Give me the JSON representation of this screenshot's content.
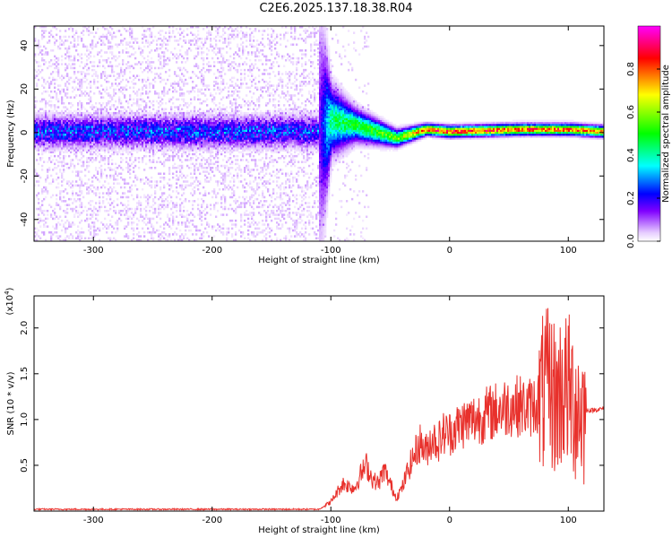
{
  "title": "C2E6.2025.137.18.38.R04",
  "chart_data": [
    {
      "type": "heatmap",
      "title": "C2E6.2025.137.18.38.R04",
      "xlabel": "Height of straight line (km)",
      "ylabel": "Frequency (Hz)",
      "xlim": [
        -350,
        130
      ],
      "ylim": [
        -50,
        49
      ],
      "xticks": [
        -300,
        -200,
        -100,
        0,
        100
      ],
      "xtick_labels": [
        "-300",
        "-200",
        "-100",
        "0",
        "100"
      ],
      "yticks": [
        -40,
        -20,
        0,
        20,
        40
      ],
      "ytick_labels": [
        "-40",
        "-20",
        "0",
        "20",
        "40"
      ],
      "colorbar": {
        "label": "Normalized spectral amplitude",
        "range": [
          0.0,
          1.0
        ],
        "ticks": [
          0.0,
          0.2,
          0.4,
          0.6,
          0.8
        ],
        "tick_labels": [
          "0.0",
          "0.2",
          "0.4",
          "0.6",
          "0.8"
        ],
        "colors": [
          "#ffffff",
          "#8000ff",
          "#0000ff",
          "#00ffff",
          "#00ff00",
          "#ffff00",
          "#ff0000",
          "#ff00ff"
        ]
      },
      "description_points": [
        {
          "x": -350,
          "center_freq": 0,
          "spread": 45,
          "amp": 0.15
        },
        {
          "x": -110,
          "center_freq": 0,
          "spread": 45,
          "amp": 0.15
        },
        {
          "x": -100,
          "center_freq": 5,
          "spread": 12,
          "amp": 0.45
        },
        {
          "x": -80,
          "center_freq": 3,
          "spread": 6,
          "amp": 0.5
        },
        {
          "x": -45,
          "center_freq": -3,
          "spread": 3,
          "amp": 0.6
        },
        {
          "x": -20,
          "center_freq": 1,
          "spread": 2,
          "amp": 0.85
        },
        {
          "x": 0,
          "center_freq": 0,
          "spread": 2,
          "amp": 0.9
        },
        {
          "x": 60,
          "center_freq": 1,
          "spread": 2,
          "amp": 0.85
        },
        {
          "x": 100,
          "center_freq": 1,
          "spread": 2,
          "amp": 0.85
        },
        {
          "x": 130,
          "center_freq": 0,
          "spread": 2,
          "amp": 0.8
        }
      ]
    },
    {
      "type": "line",
      "xlabel": "Height of straight line (km)",
      "ylabel": "SNR (10 * v/v)",
      "multiplier_label": "(x10",
      "multiplier_exp": "4",
      "xlim": [
        -350,
        130
      ],
      "ylim": [
        0,
        2.35
      ],
      "xticks": [
        -300,
        -200,
        -100,
        0,
        100
      ],
      "xtick_labels": [
        "-300",
        "-200",
        "-100",
        "0",
        "100"
      ],
      "yticks": [
        0.5,
        1.0,
        1.5,
        2.0
      ],
      "ytick_labels": [
        "0.5",
        "1.0",
        "1.5",
        "2.0"
      ],
      "series": [
        {
          "color": "#e8312c",
          "x": [
            -350,
            -110,
            -100,
            -90,
            -80,
            -75,
            -70,
            -65,
            -60,
            -55,
            -50,
            -45,
            -40,
            -35,
            -30,
            -25,
            -20,
            -15,
            -10,
            -5,
            0,
            10,
            20,
            30,
            40,
            50,
            60,
            65,
            70,
            75,
            80,
            85,
            90,
            95,
            100,
            105,
            110,
            120,
            130
          ],
          "y": [
            0.02,
            0.02,
            0.1,
            0.3,
            0.25,
            0.4,
            0.5,
            0.35,
            0.3,
            0.45,
            0.3,
            0.15,
            0.25,
            0.45,
            0.6,
            0.75,
            0.65,
            0.8,
            0.75,
            0.85,
            0.85,
            0.95,
            1.0,
            1.05,
            1.1,
            1.15,
            1.15,
            1.12,
            1.15,
            1.2,
            1.3,
            1.35,
            1.2,
            1.35,
            1.3,
            1.2,
            1.1,
            1.1,
            1.12
          ]
        }
      ]
    }
  ]
}
